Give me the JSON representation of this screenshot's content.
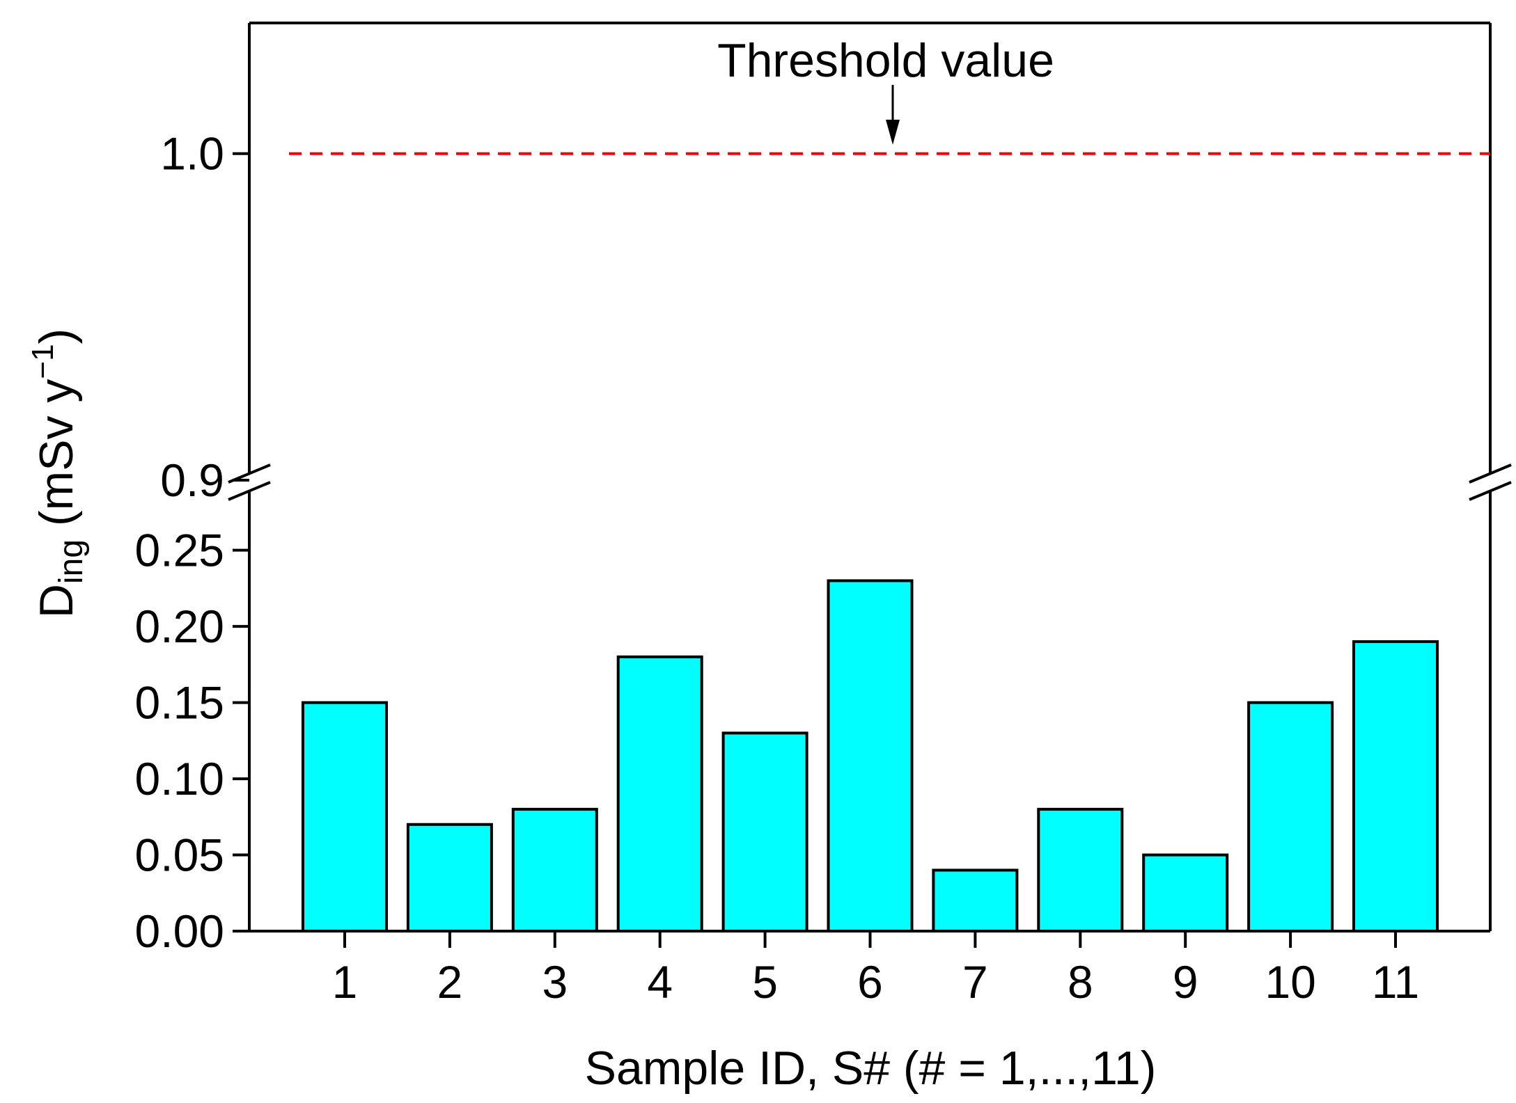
{
  "chart_data": {
    "type": "bar",
    "categories": [
      "1",
      "2",
      "3",
      "4",
      "5",
      "6",
      "7",
      "8",
      "9",
      "10",
      "11"
    ],
    "values": [
      0.15,
      0.07,
      0.08,
      0.18,
      0.13,
      0.23,
      0.04,
      0.08,
      0.05,
      0.15,
      0.19
    ],
    "xlabel": "Sample ID, S# (# = 1,...,11)",
    "ylabel": {
      "main": "D",
      "subscript": "ing",
      "units_prefix": " (mSv y",
      "superscript": "−1",
      "units_suffix": ")"
    },
    "y_axis_break": true,
    "lower_segment": {
      "ylim": [
        0,
        0.28
      ],
      "ticks": [
        "0.00",
        "0.05",
        "0.10",
        "0.15",
        "0.20",
        "0.25"
      ],
      "tick_values": [
        0,
        0.05,
        0.1,
        0.15,
        0.2,
        0.25
      ]
    },
    "upper_segment": {
      "ylim": [
        0.9,
        1.04
      ],
      "ticks": [
        "0.9",
        "1.0"
      ],
      "tick_values": [
        0.9,
        1.0
      ]
    },
    "threshold": {
      "value": 1.0,
      "label": "Threshold value",
      "color": "#ff0000",
      "style": "dashed"
    },
    "bar_color": "#00ffff",
    "bar_edge_color": "#000000"
  }
}
